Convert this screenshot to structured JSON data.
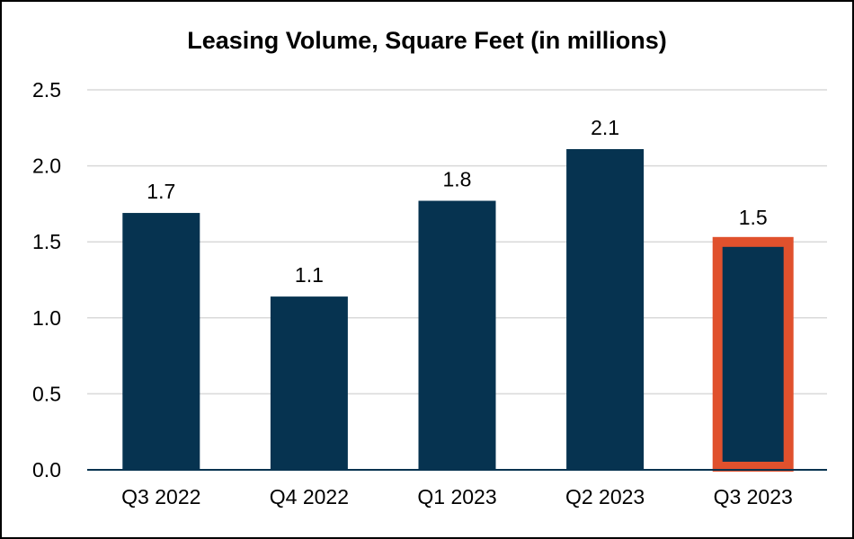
{
  "chart_data": {
    "type": "bar",
    "title": "Leasing Volume, Square Feet (in millions)",
    "xlabel": "",
    "ylabel": "",
    "ylim": [
      0,
      2.5
    ],
    "yticks": [
      "0.0",
      "0.5",
      "1.0",
      "1.5",
      "2.0",
      "2.5"
    ],
    "ytick_values": [
      0,
      0.5,
      1.0,
      1.5,
      2.0,
      2.5
    ],
    "grid": true,
    "categories": [
      "Q3 2022",
      "Q4 2022",
      "Q1 2023",
      "Q2 2023",
      "Q3 2023"
    ],
    "values": [
      1.69,
      1.14,
      1.77,
      2.11,
      1.52
    ],
    "data_labels": [
      "1.7",
      "1.1",
      "1.8",
      "2.1",
      "1.5"
    ],
    "highlighted_index": 4
  },
  "colors": {
    "bar": "#063350",
    "highlight_border": "#E0512D",
    "grid": "#d9d9d9",
    "axis": "#063350"
  }
}
